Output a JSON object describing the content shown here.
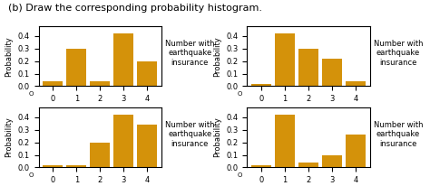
{
  "title": "(b) Draw the corresponding probability histogram.",
  "chart_data": [
    {
      "type": "bar",
      "x": [
        0,
        1,
        2,
        3,
        4
      ],
      "values": [
        0.04,
        0.3,
        0.04,
        0.42,
        0.2
      ],
      "color": "#D4920A",
      "xlim": [
        -0.6,
        4.6
      ],
      "xticks": [
        0,
        1,
        2,
        3,
        4
      ],
      "ylim": [
        0,
        0.48
      ],
      "yticks": [
        0.0,
        0.1,
        0.2,
        0.3,
        0.4
      ],
      "ylabel": "Probability",
      "xlabel": "Number with\nearthquake\ninsurance",
      "annotation": "O"
    },
    {
      "type": "bar",
      "x": [
        0,
        1,
        2,
        3,
        4
      ],
      "values": [
        0.02,
        0.42,
        0.3,
        0.22,
        0.04
      ],
      "color": "#D4920A",
      "xlim": [
        -0.6,
        4.6
      ],
      "xticks": [
        0,
        1,
        2,
        3,
        4
      ],
      "ylim": [
        0,
        0.48
      ],
      "yticks": [
        0.0,
        0.1,
        0.2,
        0.3,
        0.4
      ],
      "ylabel": "Probability",
      "xlabel": "Number with\nearthquake\ninsurance",
      "annotation": "O"
    },
    {
      "type": "bar",
      "x": [
        0,
        1,
        2,
        3,
        4
      ],
      "values": [
        0.02,
        0.02,
        0.2,
        0.42,
        0.34
      ],
      "color": "#D4920A",
      "xlim": [
        -0.6,
        4.6
      ],
      "xticks": [
        0,
        1,
        2,
        3,
        4
      ],
      "ylim": [
        0,
        0.48
      ],
      "yticks": [
        0.0,
        0.1,
        0.2,
        0.3,
        0.4
      ],
      "ylabel": "Probability",
      "xlabel": "Number with\nearthquake\ninsurance",
      "annotation": "O"
    },
    {
      "type": "bar",
      "x": [
        0,
        1,
        2,
        3,
        4
      ],
      "values": [
        0.02,
        0.42,
        0.04,
        0.1,
        0.26
      ],
      "color": "#D4920A",
      "xlim": [
        -0.6,
        4.6
      ],
      "xticks": [
        0,
        1,
        2,
        3,
        4
      ],
      "ylim": [
        0,
        0.48
      ],
      "yticks": [
        0.0,
        0.1,
        0.2,
        0.3,
        0.4
      ],
      "ylabel": "Probability",
      "xlabel": "Number with\nearthquake\ninsurance",
      "annotation": "O"
    }
  ]
}
